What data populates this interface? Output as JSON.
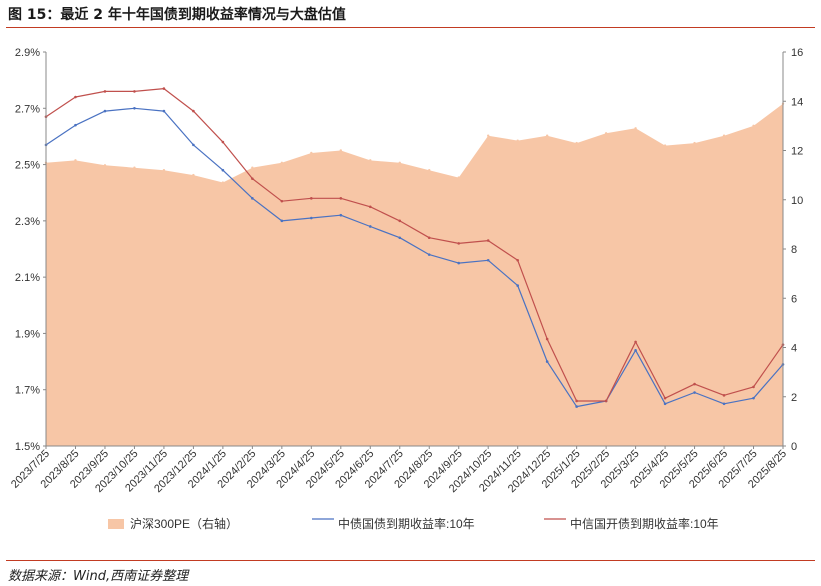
{
  "header": {
    "title": "图 15：最近 2 年十年国债到期收益率情况与大盘估值"
  },
  "footer": {
    "source": "数据来源：Wind,西南证券整理"
  },
  "chart_data": {
    "type": "line",
    "title": "最近 2 年十年国债到期收益率情况与大盘估值",
    "xlabel": "",
    "ylabel_left": "",
    "ylabel_right": "",
    "categories": [
      "2023/7/25",
      "2023/8/25",
      "2023/9/25",
      "2023/10/25",
      "2023/11/25",
      "2023/12/25",
      "2024/1/25",
      "2024/2/25",
      "2024/3/25",
      "2024/4/25",
      "2024/5/25",
      "2024/6/25",
      "2024/7/25",
      "2024/8/25",
      "2024/9/25",
      "2024/10/25",
      "2024/11/25",
      "2024/12/25",
      "2025/1/25",
      "2025/2/25",
      "2025/3/25",
      "2025/4/25",
      "2025/5/25",
      "2025/6/25",
      "2025/7/25",
      "2025/8/25"
    ],
    "y_left_ticks": [
      "1.5%",
      "1.7%",
      "1.9%",
      "2.1%",
      "2.3%",
      "2.5%",
      "2.7%",
      "2.9%"
    ],
    "y_right_ticks": [
      "0",
      "2",
      "4",
      "6",
      "8",
      "10",
      "12",
      "14",
      "16"
    ],
    "ylim_left": [
      1.5,
      2.9
    ],
    "ylim_right": [
      0,
      16
    ],
    "series": [
      {
        "name": "沪深300PE（右轴）",
        "axis": "right",
        "kind": "area",
        "color": "#f7c6a6",
        "values": [
          11.5,
          11.6,
          11.4,
          11.3,
          11.2,
          11.0,
          10.7,
          11.3,
          11.5,
          11.9,
          12.0,
          11.6,
          11.5,
          11.2,
          10.9,
          12.6,
          12.4,
          12.6,
          12.3,
          12.7,
          12.9,
          12.2,
          12.3,
          12.6,
          13.0,
          13.9
        ]
      },
      {
        "name": "中债国债到期收益率:10年",
        "axis": "left",
        "kind": "line",
        "color": "#4a72c2",
        "values": [
          2.57,
          2.64,
          2.69,
          2.7,
          2.69,
          2.57,
          2.48,
          2.38,
          2.3,
          2.31,
          2.32,
          2.28,
          2.24,
          2.18,
          2.15,
          2.16,
          2.07,
          1.8,
          1.64,
          1.66,
          1.84,
          1.65,
          1.69,
          1.65,
          1.67,
          1.79
        ]
      },
      {
        "name": "中信国开债到期收益率:10年",
        "axis": "left",
        "kind": "line",
        "color": "#c0504d",
        "values": [
          2.67,
          2.74,
          2.76,
          2.76,
          2.77,
          2.69,
          2.58,
          2.45,
          2.37,
          2.38,
          2.38,
          2.35,
          2.3,
          2.24,
          2.22,
          2.23,
          2.16,
          1.88,
          1.66,
          1.66,
          1.87,
          1.67,
          1.72,
          1.68,
          1.71,
          1.86
        ]
      }
    ],
    "legend": [
      "沪深300PE（右轴）",
      "中债国债到期收益率:10年",
      "中信国开债到期收益率:10年"
    ],
    "legend_position": "bottom",
    "grid": false
  }
}
